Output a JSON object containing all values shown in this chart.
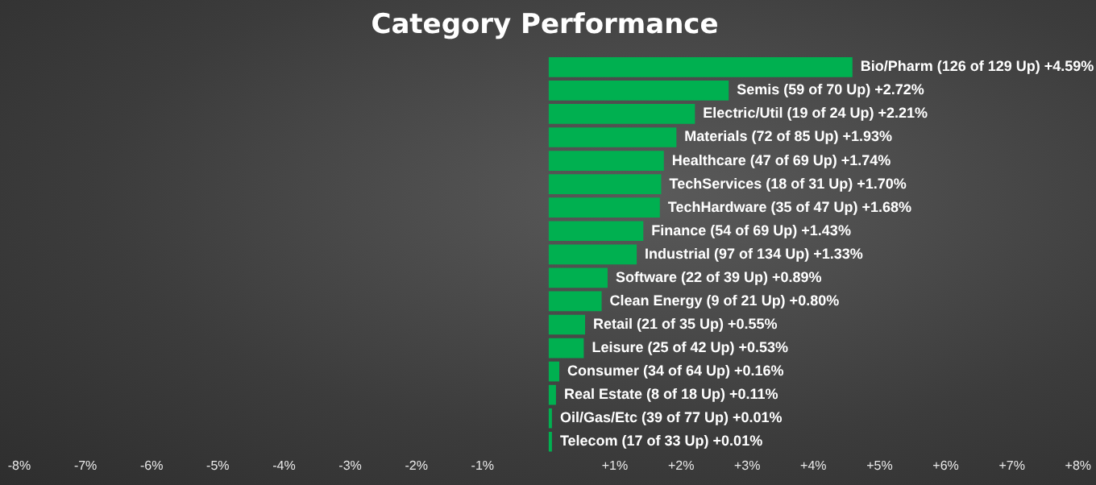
{
  "chart_data": {
    "type": "bar",
    "orientation": "horizontal",
    "title": "Category Performance",
    "categories": [
      "Bio/Pharm (126 of 129 Up) +4.59%",
      "Semis (59 of 70 Up) +2.72%",
      "Electric/Util (19 of 24 Up) +2.21%",
      "Materials (72 of 85 Up) +1.93%",
      "Healthcare (47 of 69 Up) +1.74%",
      "TechServices (18 of 31 Up) +1.70%",
      "TechHardware (35 of 47 Up) +1.68%",
      "Finance (54 of 69 Up) +1.43%",
      "Industrial (97 of 134 Up) +1.33%",
      "Software (22 of 39 Up) +0.89%",
      "Clean Energy (9 of 21 Up) +0.80%",
      "Retail (21 of 35 Up) +0.55%",
      "Leisure (25 of 42 Up) +0.53%",
      "Consumer (34 of 64 Up) +0.16%",
      "Real Estate (8 of 18 Up) +0.11%",
      "Oil/Gas/Etc (39 of 77 Up) +0.01%",
      "Telecom (17 of 33 Up) +0.01%"
    ],
    "values": [
      4.59,
      2.72,
      2.21,
      1.93,
      1.74,
      1.7,
      1.68,
      1.43,
      1.33,
      0.89,
      0.8,
      0.55,
      0.53,
      0.16,
      0.11,
      0.01,
      0.01
    ],
    "color": "#00b050",
    "xlim": [
      -8,
      8
    ],
    "xticks": [
      {
        "value": -8,
        "label": "-8%"
      },
      {
        "value": -7,
        "label": "-7%"
      },
      {
        "value": -6,
        "label": "-6%"
      },
      {
        "value": -5,
        "label": "-5%"
      },
      {
        "value": -4,
        "label": "-4%"
      },
      {
        "value": -3,
        "label": "-3%"
      },
      {
        "value": -2,
        "label": "-2%"
      },
      {
        "value": -1,
        "label": "-1%"
      },
      {
        "value": 1,
        "label": "+1%"
      },
      {
        "value": 2,
        "label": "+2%"
      },
      {
        "value": 3,
        "label": "+3%"
      },
      {
        "value": 4,
        "label": "+4%"
      },
      {
        "value": 5,
        "label": "+5%"
      },
      {
        "value": 6,
        "label": "+6%"
      },
      {
        "value": 7,
        "label": "+7%"
      },
      {
        "value": 8,
        "label": "+8%"
      }
    ],
    "tick_labels": "x",
    "grid": false,
    "legend": false
  }
}
